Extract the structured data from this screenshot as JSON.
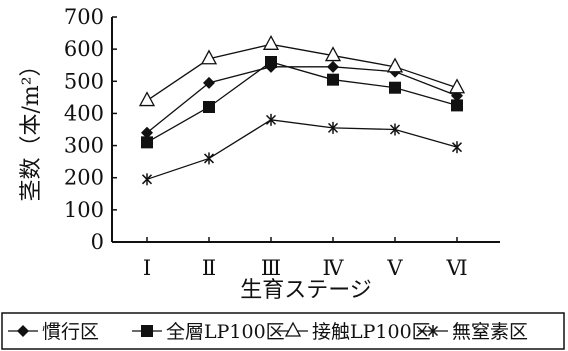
{
  "chart_data": {
    "type": "line",
    "categories": [
      "Ⅰ",
      "Ⅱ",
      "Ⅲ",
      "Ⅳ",
      "Ⅴ",
      "Ⅵ"
    ],
    "xlabel": "生育ステージ",
    "ylabel": "茎数（本/m²）",
    "ylim": [
      0,
      700
    ],
    "yticks": [
      0,
      100,
      200,
      300,
      400,
      500,
      600,
      700
    ],
    "grid": false,
    "legend_position": "bottom",
    "series": [
      {
        "name": "慣行区",
        "marker": "filled-diamond",
        "values": [
          340,
          495,
          545,
          545,
          530,
          455
        ]
      },
      {
        "name": "全層LP100区",
        "marker": "filled-square",
        "values": [
          310,
          420,
          560,
          505,
          480,
          425
        ]
      },
      {
        "name": "接触LP100区",
        "marker": "open-triangle",
        "values": [
          440,
          570,
          615,
          580,
          545,
          480
        ]
      },
      {
        "name": "無窒素区",
        "marker": "asterisk",
        "values": [
          195,
          260,
          380,
          355,
          350,
          295
        ]
      }
    ]
  }
}
